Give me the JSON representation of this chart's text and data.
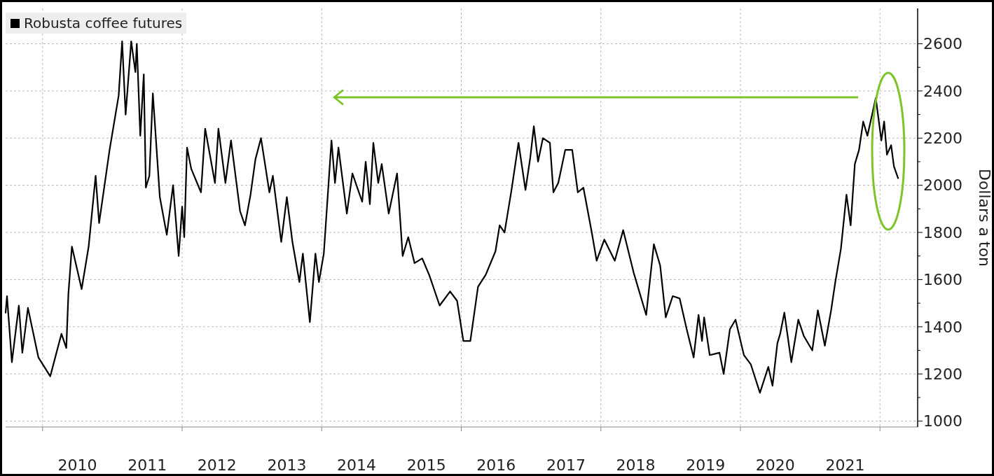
{
  "chart_data": {
    "type": "line",
    "ylabel": "Dollars a ton",
    "legend": "top left",
    "grid": true,
    "marker": "none",
    "line_style": "solid",
    "xlim": [
      2009.47,
      2022.54
    ],
    "ylim": [
      975,
      2750
    ],
    "xticks": [
      {
        "value": 2010,
        "label": null
      },
      {
        "value": 2010.5,
        "label": "2010"
      },
      {
        "value": 2011.5,
        "label": "2011"
      },
      {
        "value": 2012,
        "label": null
      },
      {
        "value": 2012.5,
        "label": "2012"
      },
      {
        "value": 2013.5,
        "label": "2013"
      },
      {
        "value": 2014,
        "label": null
      },
      {
        "value": 2014.5,
        "label": "2014"
      },
      {
        "value": 2015.5,
        "label": "2015"
      },
      {
        "value": 2016,
        "label": null
      },
      {
        "value": 2016.5,
        "label": "2016"
      },
      {
        "value": 2017.5,
        "label": "2017"
      },
      {
        "value": 2018,
        "label": null
      },
      {
        "value": 2018.5,
        "label": "2018"
      },
      {
        "value": 2019.5,
        "label": "2019"
      },
      {
        "value": 2020,
        "label": null
      },
      {
        "value": 2020.5,
        "label": "2020"
      },
      {
        "value": 2021.5,
        "label": "2021"
      },
      {
        "value": 2022,
        "label": null
      }
    ],
    "yticks": [
      1000,
      {
        "value": 1100,
        "label": null
      },
      1200,
      {
        "value": 1300,
        "label": null
      },
      1400,
      {
        "value": 1500,
        "label": null
      },
      1600,
      {
        "value": 1700,
        "label": null
      },
      1800,
      {
        "value": 1900,
        "label": null
      },
      2000,
      {
        "value": 2100,
        "label": null
      },
      2200,
      {
        "value": 2300,
        "label": null
      },
      2400,
      {
        "value": 2500,
        "label": null
      },
      2600
    ],
    "series": [
      {
        "name": "Robusta coffee futures",
        "color": "#000000",
        "x": [
          2009.47,
          2009.49,
          2009.56,
          2009.66,
          2009.71,
          2009.79,
          2009.94,
          2010.11,
          2010.27,
          2010.34,
          2010.37,
          2010.42,
          2010.56,
          2010.66,
          2010.76,
          2010.81,
          2010.96,
          2011.09,
          2011.14,
          2011.19,
          2011.27,
          2011.33,
          2011.35,
          2011.4,
          2011.45,
          2011.48,
          2011.53,
          2011.58,
          2011.68,
          2011.78,
          2011.87,
          2011.95,
          2012.0,
          2012.03,
          2012.07,
          2012.13,
          2012.27,
          2012.33,
          2012.47,
          2012.52,
          2012.62,
          2012.7,
          2012.83,
          2012.9,
          2012.98,
          2013.05,
          2013.13,
          2013.25,
          2013.3,
          2013.42,
          2013.5,
          2013.58,
          2013.68,
          2013.73,
          2013.83,
          2013.91,
          2013.96,
          2014.03,
          2014.14,
          2014.19,
          2014.24,
          2014.36,
          2014.44,
          2014.58,
          2014.63,
          2014.69,
          2014.74,
          2014.81,
          2014.86,
          2014.96,
          2015.08,
          2015.16,
          2015.24,
          2015.33,
          2015.44,
          2015.54,
          2015.69,
          2015.84,
          2015.94,
          2016.03,
          2016.13,
          2016.24,
          2016.35,
          2016.49,
          2016.55,
          2016.62,
          2016.72,
          2016.82,
          2016.92,
          2016.99,
          2017.04,
          2017.1,
          2017.17,
          2017.27,
          2017.32,
          2017.39,
          2017.49,
          2017.59,
          2017.67,
          2017.75,
          2017.87,
          2017.94,
          2018.05,
          2018.2,
          2018.32,
          2018.47,
          2018.65,
          2018.76,
          2018.85,
          2018.93,
          2019.03,
          2019.13,
          2019.23,
          2019.33,
          2019.4,
          2019.45,
          2019.48,
          2019.56,
          2019.7,
          2019.76,
          2019.85,
          2019.93,
          2020.05,
          2020.15,
          2020.28,
          2020.4,
          2020.46,
          2020.53,
          2020.57,
          2020.63,
          2020.73,
          2020.83,
          2020.91,
          2021.03,
          2021.11,
          2021.21,
          2021.3,
          2021.36,
          2021.44,
          2021.52,
          2021.58,
          2021.64,
          2021.7,
          2021.76,
          2021.82,
          2021.94,
          2022.02,
          2022.06,
          2022.1,
          2022.16,
          2022.2,
          2022.26
        ],
        "values": [
          1460,
          1530,
          1250,
          1490,
          1290,
          1480,
          1270,
          1190,
          1370,
          1310,
          1540,
          1740,
          1560,
          1740,
          2040,
          1840,
          2150,
          2380,
          2610,
          2300,
          2610,
          2480,
          2600,
          2210,
          2470,
          1990,
          2040,
          2390,
          1950,
          1790,
          2000,
          1700,
          1910,
          1780,
          2160,
          2070,
          1970,
          2240,
          2010,
          2240,
          2010,
          2190,
          1890,
          1830,
          1960,
          2110,
          2200,
          1970,
          2040,
          1760,
          1950,
          1760,
          1590,
          1710,
          1420,
          1710,
          1590,
          1710,
          2190,
          2010,
          2160,
          1880,
          2050,
          1930,
          2100,
          1920,
          2180,
          2010,
          2090,
          1880,
          2050,
          1700,
          1780,
          1670,
          1690,
          1620,
          1490,
          1550,
          1510,
          1340,
          1340,
          1570,
          1620,
          1720,
          1830,
          1800,
          1980,
          2180,
          1980,
          2120,
          2250,
          2100,
          2200,
          2180,
          1970,
          2010,
          2150,
          2150,
          1970,
          1990,
          1800,
          1680,
          1770,
          1680,
          1810,
          1630,
          1450,
          1750,
          1660,
          1440,
          1530,
          1520,
          1390,
          1270,
          1450,
          1340,
          1440,
          1280,
          1290,
          1200,
          1390,
          1430,
          1280,
          1240,
          1120,
          1230,
          1150,
          1330,
          1370,
          1460,
          1250,
          1430,
          1360,
          1300,
          1470,
          1320,
          1470,
          1590,
          1730,
          1960,
          1830,
          2090,
          2150,
          2270,
          2210,
          2370,
          2190,
          2270,
          2130,
          2170,
          2080,
          2030
        ]
      }
    ]
  }
}
